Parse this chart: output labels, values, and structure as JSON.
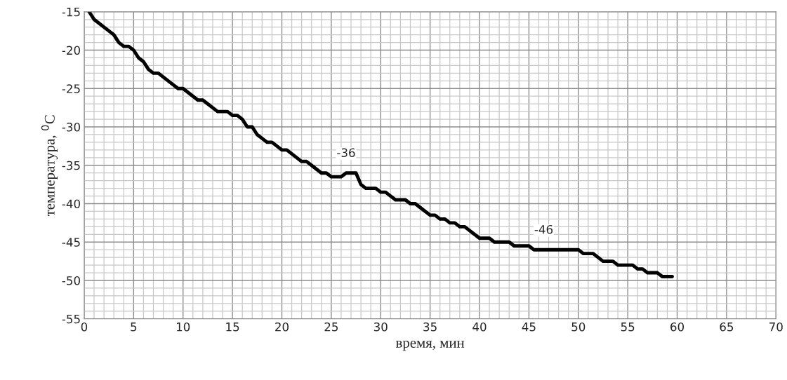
{
  "chart_data": {
    "type": "line",
    "xlabel": "время, мин",
    "ylabel": "температура, $^{0}$C",
    "x": [
      0.5,
      1,
      2,
      3,
      3.5,
      4,
      4.5,
      5,
      5.5,
      6,
      6.5,
      7,
      7.5,
      8,
      9,
      9.5,
      10,
      11,
      11.5,
      12,
      13,
      13.5,
      14.5,
      15,
      15.5,
      16,
      16.5,
      17,
      17.5,
      18,
      18.5,
      19,
      20,
      20.5,
      21,
      21.5,
      22,
      22.5,
      23,
      23.5,
      24,
      24.5,
      25,
      26,
      26.5,
      27.5,
      28,
      28.5,
      29.5,
      30,
      30.5,
      31,
      31.5,
      32.5,
      33,
      33.5,
      34,
      35,
      35.5,
      36,
      36.5,
      37,
      37.5,
      38,
      38.5,
      39,
      40,
      41,
      41.5,
      43,
      43.5,
      45,
      45.5,
      50,
      50.5,
      51.5,
      52.5,
      53.5,
      54,
      55.5,
      56,
      56.5,
      57,
      58,
      58.5,
      59.5
    ],
    "series": [
      {
        "color": "#000000",
        "values": [
          -15,
          -16,
          -17,
          -18,
          -19,
          -19.5,
          -19.5,
          -20,
          -21,
          -21.5,
          -22.5,
          -23,
          -23,
          -23.5,
          -24.5,
          -25,
          -25,
          -26,
          -26.5,
          -26.5,
          -27.5,
          -28,
          -28,
          -28.5,
          -28.5,
          -29,
          -30,
          -30,
          -31,
          -31.5,
          -32,
          -32,
          -33,
          -33,
          -33.5,
          -34,
          -34.5,
          -34.5,
          -35,
          -35.5,
          -36,
          -36,
          -36.5,
          -36.5,
          -36,
          -36,
          -37.5,
          -38,
          -38,
          -38.5,
          -38.5,
          -39,
          -39.5,
          -39.5,
          -40,
          -40,
          -40.5,
          -41.5,
          -41.5,
          -42,
          -42,
          -42.5,
          -42.5,
          -43,
          -43,
          -43.5,
          -44.5,
          -44.5,
          -45,
          -45,
          -45.5,
          -45.5,
          -46,
          -46,
          -46.5,
          -46.5,
          -47.5,
          -47.5,
          -48,
          -48,
          -48.5,
          -48.5,
          -49,
          -49,
          -49.5,
          -49.5
        ]
      }
    ],
    "xlim": [
      0,
      70
    ],
    "xticks": [
      0,
      5,
      10,
      15,
      20,
      25,
      30,
      35,
      40,
      45,
      50,
      55,
      60,
      65,
      70
    ],
    "ylim": [
      -55,
      -15
    ],
    "yticks": [
      -15,
      -20,
      -25,
      -30,
      -35,
      -40,
      -45,
      -50,
      -55
    ],
    "grid": true,
    "legend": false,
    "marker": "none",
    "line_style": "solid",
    "annotations": [
      {
        "text": "-36",
        "x": 26.5,
        "y": -36
      },
      {
        "text": "-46",
        "x": 46.5,
        "y": -46
      }
    ]
  }
}
